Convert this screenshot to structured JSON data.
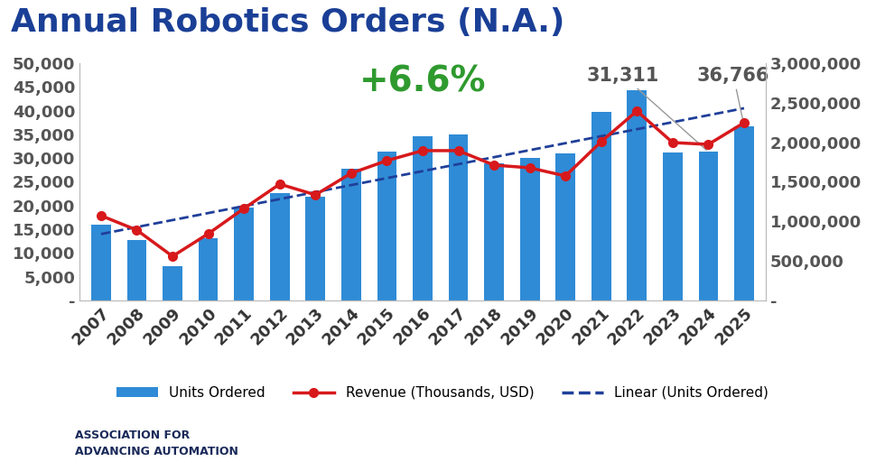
{
  "chart_data": {
    "type": "bar",
    "title": "Annual Robotics Orders (N.A.)",
    "categories": [
      "2007",
      "2008",
      "2009",
      "2010",
      "2011",
      "2012",
      "2013",
      "2014",
      "2015",
      "2016",
      "2017",
      "2018",
      "2019",
      "2020",
      "2021",
      "2022",
      "2023",
      "2024",
      "2025"
    ],
    "series": [
      {
        "name": "Units Ordered",
        "type": "bar",
        "color": "#2f8bd6",
        "axis": "y",
        "values": [
          16000,
          12700,
          7200,
          13200,
          19500,
          22600,
          21800,
          27700,
          31400,
          34600,
          34900,
          28800,
          30000,
          31000,
          39700,
          44200,
          31200,
          31311,
          36766
        ]
      },
      {
        "name": "Revenue (Thousands, USD)",
        "type": "line",
        "color": "#d7191c",
        "marker": "circle",
        "line_style": "solid",
        "axis": "y2",
        "values": [
          1072000,
          890000,
          559000,
          844000,
          1163000,
          1471000,
          1335000,
          1608000,
          1768000,
          1894000,
          1894000,
          1711000,
          1677000,
          1574000,
          2008000,
          2395000,
          1996000,
          1973000,
          2247000
        ]
      },
      {
        "name": "Linear (Units Ordered)",
        "type": "line",
        "color": "#1f3f99",
        "line_style": "dashed",
        "axis": "y",
        "values": [
          14000,
          15470,
          16940,
          18420,
          19890,
          21360,
          22830,
          24310,
          25780,
          27250,
          28720,
          30190,
          31670,
          33140,
          34610,
          36080,
          37560,
          39030,
          40500
        ]
      }
    ],
    "ylim": [
      0,
      50000
    ],
    "yticks": [
      {
        "value": 0,
        "label": "-"
      },
      {
        "value": 5000,
        "label": "5,000"
      },
      {
        "value": 10000,
        "label": "10,000"
      },
      {
        "value": 15000,
        "label": "15,000"
      },
      {
        "value": 20000,
        "label": "20,000"
      },
      {
        "value": 25000,
        "label": "25,000"
      },
      {
        "value": 30000,
        "label": "30,000"
      },
      {
        "value": 35000,
        "label": "35,000"
      },
      {
        "value": 40000,
        "label": "40,000"
      },
      {
        "value": 45000,
        "label": "45,000"
      },
      {
        "value": 50000,
        "label": "50,000"
      }
    ],
    "y2lim": [
      0,
      3000000
    ],
    "y2ticks": [
      {
        "value": 0,
        "label": "-"
      },
      {
        "value": 500000,
        "label": "500,000"
      },
      {
        "value": 1000000,
        "label": "1,000,000"
      },
      {
        "value": 1500000,
        "label": "1,500,000"
      },
      {
        "value": 2000000,
        "label": "2,000,000"
      },
      {
        "value": 2500000,
        "label": "2,500,000"
      },
      {
        "value": 3000000,
        "label": "3,000,000"
      }
    ],
    "grid": false,
    "legend": "lower center",
    "headline": {
      "text": "+6.6%",
      "color": "#2e9a2e"
    },
    "annotations": [
      {
        "text": "31,311",
        "category": "2024"
      },
      {
        "text": "36,766",
        "category": "2025"
      }
    ],
    "footer": [
      "ASSOCIATION FOR",
      "ADVANCING AUTOMATION"
    ]
  }
}
